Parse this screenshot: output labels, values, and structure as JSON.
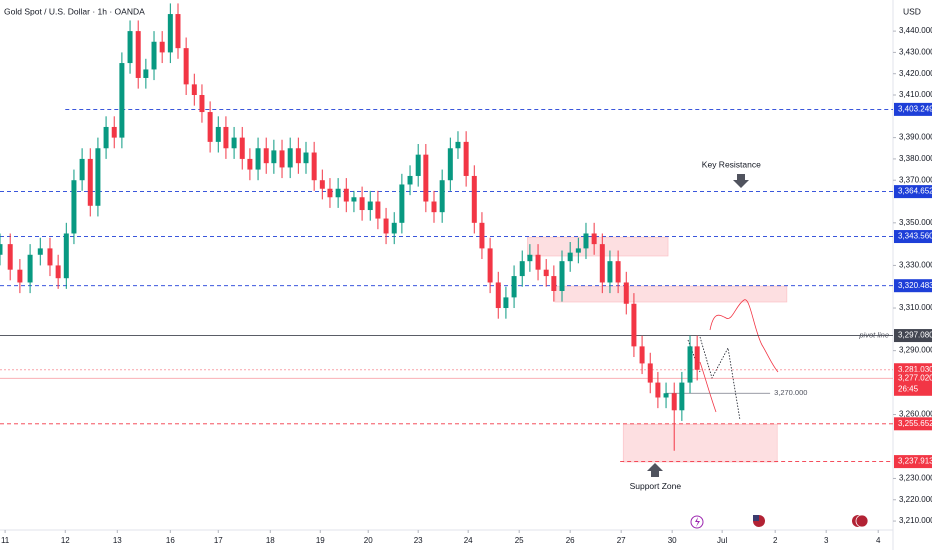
{
  "chart_data": {
    "type": "candlestick",
    "title": "Gold Spot / U.S. Dollar · 1h · OANDA",
    "currency": "USD",
    "up_color": "#089981",
    "down_color": "#f23645",
    "xlim": [
      -0.1,
      17.41
    ],
    "xticks": [
      {
        "value": 0,
        "label": "11"
      },
      {
        "value": 1.18,
        "label": "12"
      },
      {
        "value": 2.2,
        "label": "13"
      },
      {
        "value": 3.24,
        "label": "16"
      },
      {
        "value": 4.18,
        "label": "17"
      },
      {
        "value": 5.2,
        "label": "18"
      },
      {
        "value": 6.18,
        "label": "19"
      },
      {
        "value": 7.12,
        "label": "20"
      },
      {
        "value": 8.1,
        "label": "23"
      },
      {
        "value": 9.08,
        "label": "24"
      },
      {
        "value": 10.08,
        "label": "25"
      },
      {
        "value": 11.08,
        "label": "26"
      },
      {
        "value": 12.08,
        "label": "27"
      },
      {
        "value": 13.08,
        "label": "30"
      },
      {
        "value": 14.06,
        "label": "Jul"
      },
      {
        "value": 15.1,
        "label": "2"
      },
      {
        "value": 16.1,
        "label": "3"
      },
      {
        "value": 17.12,
        "label": "4"
      }
    ],
    "ylim": [
      3205.8,
      3454.6
    ],
    "yticks": [
      {
        "value": 3440,
        "label": "3,440.000"
      },
      {
        "value": 3430,
        "label": "3,430.000"
      },
      {
        "value": 3420,
        "label": "3,420.000"
      },
      {
        "value": 3410,
        "label": "3,410.000"
      },
      {
        "value": 3390,
        "label": "3,390.000"
      },
      {
        "value": 3380,
        "label": "3,380.000"
      },
      {
        "value": 3370,
        "label": "3,370.000"
      },
      {
        "value": 3350,
        "label": "3,350.000"
      },
      {
        "value": 3330,
        "label": "3,330.000"
      },
      {
        "value": 3310,
        "label": "3,310.000"
      },
      {
        "value": 3290,
        "label": "3,290.000"
      },
      {
        "value": 3260,
        "label": "3,260.000"
      },
      {
        "value": 3230,
        "label": "3,230.000"
      },
      {
        "value": 3220,
        "label": "3,220.000"
      },
      {
        "value": 3210,
        "label": "3,210.000"
      }
    ],
    "candles": {
      "x": [
        -0.1,
        0.1,
        0.29,
        0.49,
        0.69,
        0.88,
        1.04,
        1.2,
        1.35,
        1.51,
        1.67,
        1.82,
        1.98,
        2.14,
        2.29,
        2.45,
        2.61,
        2.76,
        2.92,
        3.08,
        3.24,
        3.39,
        3.55,
        3.71,
        3.86,
        4.02,
        4.18,
        4.33,
        4.49,
        4.65,
        4.8,
        4.96,
        5.12,
        5.27,
        5.43,
        5.59,
        5.75,
        5.9,
        6.06,
        6.22,
        6.37,
        6.53,
        6.69,
        6.84,
        7.0,
        7.16,
        7.31,
        7.47,
        7.63,
        7.78,
        7.94,
        8.1,
        8.25,
        8.41,
        8.57,
        8.73,
        8.88,
        9.04,
        9.2,
        9.35,
        9.51,
        9.67,
        9.82,
        9.98,
        10.14,
        10.29,
        10.45,
        10.61,
        10.76,
        10.92,
        11.08,
        11.24,
        11.39,
        11.55,
        11.71,
        11.86,
        12.02,
        12.18,
        12.33,
        12.49,
        12.65,
        12.8,
        12.96,
        13.12,
        13.27,
        13.43,
        13.57
      ],
      "open": [
        3335,
        3340,
        3328,
        3322,
        3335,
        3338,
        3330,
        3324,
        3345,
        3370,
        3380,
        3358,
        3385,
        3395,
        3390,
        3425,
        3440,
        3418,
        3422,
        3435,
        3430,
        3448,
        3432,
        3415,
        3410,
        3402,
        3388,
        3395,
        3385,
        3390,
        3380,
        3375,
        3385,
        3378,
        3384,
        3376,
        3385,
        3378,
        3383,
        3370,
        3366,
        3362,
        3366,
        3360,
        3362,
        3356,
        3360,
        3352,
        3345,
        3350,
        3368,
        3372,
        3382,
        3360,
        3355,
        3370,
        3385,
        3388,
        3372,
        3350,
        3338,
        3322,
        3310,
        3315,
        3325,
        3332,
        3335,
        3328,
        3325,
        3318,
        3332,
        3336,
        3338,
        3345,
        3340,
        3322,
        3332,
        3322,
        3312,
        3292,
        3284,
        3275,
        3268,
        3270,
        3262,
        3275,
        3292
      ],
      "high": [
        3345,
        3345,
        3333,
        3340,
        3343,
        3343,
        3335,
        3350,
        3375,
        3385,
        3385,
        3390,
        3400,
        3400,
        3430,
        3445,
        3445,
        3427,
        3440,
        3440,
        3453,
        3453,
        3437,
        3420,
        3415,
        3407,
        3400,
        3400,
        3395,
        3395,
        3385,
        3390,
        3390,
        3389,
        3389,
        3390,
        3390,
        3388,
        3388,
        3375,
        3371,
        3371,
        3371,
        3365,
        3367,
        3365,
        3365,
        3357,
        3355,
        3373,
        3377,
        3387,
        3387,
        3365,
        3375,
        3390,
        3393,
        3393,
        3377,
        3355,
        3343,
        3327,
        3320,
        3330,
        3337,
        3340,
        3340,
        3333,
        3330,
        3337,
        3341,
        3343,
        3350,
        3350,
        3345,
        3337,
        3337,
        3327,
        3317,
        3297,
        3289,
        3280,
        3275,
        3275,
        3280,
        3297,
        3297
      ],
      "low": [
        3330,
        3323,
        3317,
        3317,
        3330,
        3325,
        3319,
        3319,
        3340,
        3365,
        3353,
        3353,
        3380,
        3385,
        3385,
        3420,
        3413,
        3413,
        3417,
        3425,
        3425,
        3427,
        3410,
        3405,
        3397,
        3383,
        3383,
        3380,
        3380,
        3375,
        3370,
        3370,
        3373,
        3373,
        3371,
        3371,
        3373,
        3373,
        3365,
        3361,
        3357,
        3357,
        3355,
        3355,
        3351,
        3351,
        3347,
        3340,
        3340,
        3345,
        3363,
        3367,
        3355,
        3350,
        3350,
        3365,
        3380,
        3367,
        3345,
        3333,
        3317,
        3305,
        3305,
        3310,
        3320,
        3327,
        3323,
        3320,
        3313,
        3313,
        3327,
        3331,
        3333,
        3335,
        3317,
        3317,
        3317,
        3307,
        3287,
        3279,
        3270,
        3263,
        3263,
        3243,
        3257,
        3270,
        3276
      ],
      "close": [
        3340,
        3328,
        3322,
        3335,
        3338,
        3330,
        3324,
        3345,
        3370,
        3380,
        3358,
        3385,
        3395,
        3390,
        3425,
        3440,
        3418,
        3422,
        3435,
        3430,
        3448,
        3432,
        3415,
        3410,
        3402,
        3388,
        3395,
        3385,
        3390,
        3380,
        3375,
        3385,
        3378,
        3384,
        3376,
        3385,
        3378,
        3383,
        3370,
        3366,
        3362,
        3366,
        3360,
        3362,
        3356,
        3360,
        3352,
        3345,
        3350,
        3368,
        3372,
        3382,
        3360,
        3355,
        3370,
        3385,
        3388,
        3372,
        3350,
        3338,
        3322,
        3310,
        3315,
        3325,
        3332,
        3335,
        3328,
        3325,
        3318,
        3332,
        3336,
        3338,
        3345,
        3340,
        3322,
        3332,
        3322,
        3312,
        3292,
        3284,
        3275,
        3268,
        3270,
        3262,
        3275,
        3292,
        3281
      ]
    },
    "levels": [
      {
        "value": 3403.249,
        "label": "3,403.249",
        "color": "#1e3fd8",
        "style": "dashed",
        "from": 1.18
      },
      {
        "value": 3364.652,
        "label": "3,364.652",
        "color": "#1e3fd8",
        "style": "dashed"
      },
      {
        "value": 3343.56,
        "label": "3,343.560",
        "color": "#1e3fd8",
        "style": "dashed"
      },
      {
        "value": 3320.483,
        "label": "3,320.483",
        "color": "#1e3fd8",
        "style": "dashed"
      },
      {
        "value": 3297.08,
        "label": "3,297.080",
        "color": "#434651",
        "style": "solid",
        "text": "pivot line"
      },
      {
        "value": 3281.03,
        "label": "3,281.030",
        "color": "#f23645",
        "style": "dotted"
      },
      {
        "value": 3277.02,
        "label": "3,277.020",
        "color": "#f23645",
        "style": "solid",
        "countdown": "26:45"
      },
      {
        "value": 3255.652,
        "label": "3,255.652",
        "color": "#f23645",
        "style": "dashed"
      },
      {
        "value": 3237.913,
        "label": "3,237.913",
        "color": "#f23645",
        "style": "dashed",
        "from": 12.06
      }
    ],
    "zones": [
      {
        "top": 3343.3,
        "bottom": 3334.4,
        "x0": 10.24,
        "x1": 13.0
      },
      {
        "top": 3320.3,
        "bottom": 3312.8,
        "x0": 10.78,
        "x1": 15.33
      },
      {
        "top": 3255.5,
        "bottom": 3237.7,
        "x0": 12.12,
        "x1": 15.14
      }
    ],
    "target": {
      "value": 3270,
      "label": "3,270.000",
      "x0": 12.96,
      "x1": 15.0
    },
    "annotations": [
      {
        "text": "Key Resistance",
        "x": 14.24,
        "y": 3377
      },
      {
        "text": "Support Zone",
        "x": 12.75,
        "y": 3226
      }
    ]
  }
}
